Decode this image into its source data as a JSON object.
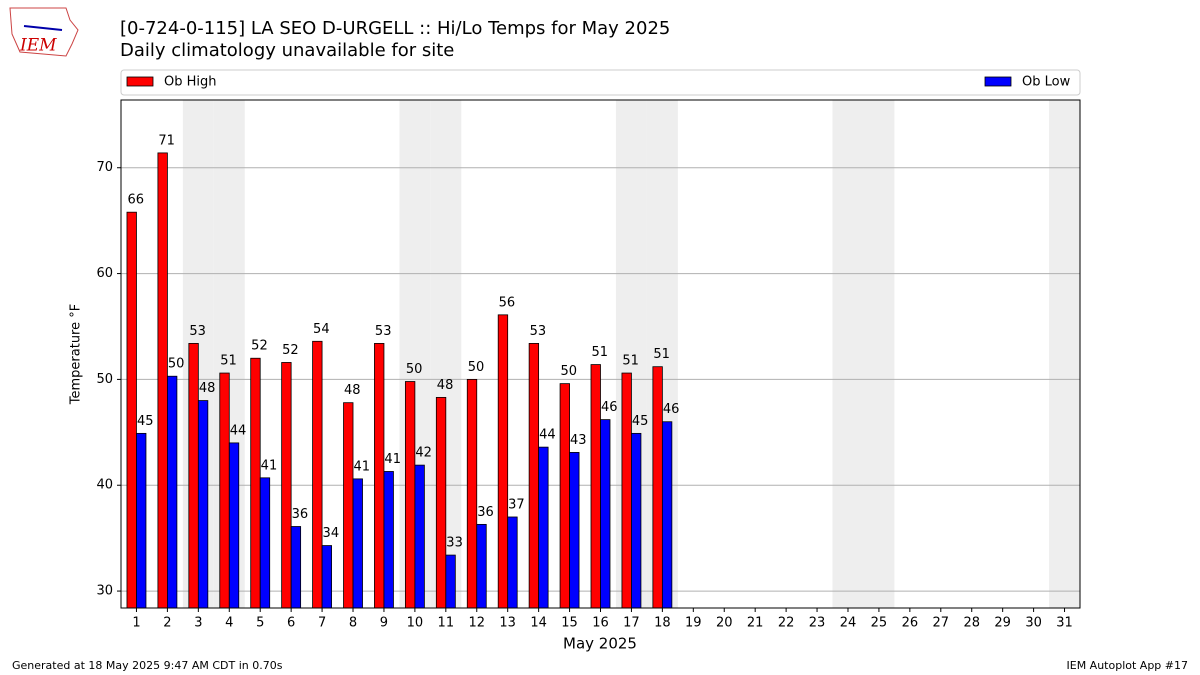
{
  "chart_data": {
    "type": "bar",
    "title": "[0-724-0-115] LA SEO D-URGELL :: Hi/Lo Temps for May 2025",
    "subtitle": "Daily climatology unavailable for site",
    "logo": "IEM",
    "x_label": "May 2025",
    "y_label": "Temperature °F",
    "footer_left": "Generated at 18 May 2025 9:47 AM CDT in 0.70s",
    "footer_right": "IEM Autoplot App #17",
    "categories": [
      "1",
      "2",
      "3",
      "4",
      "5",
      "6",
      "7",
      "8",
      "9",
      "10",
      "11",
      "12",
      "13",
      "14",
      "15",
      "16",
      "17",
      "18",
      "19",
      "20",
      "21",
      "22",
      "23",
      "24",
      "25",
      "26",
      "27",
      "28",
      "29",
      "30",
      "31"
    ],
    "shaded_days": [
      3,
      4,
      10,
      11,
      17,
      18,
      24,
      25,
      31
    ],
    "series": [
      {
        "name": "Ob High",
        "color": "#ff0000",
        "values": [
          65.8,
          71.4,
          53.4,
          50.6,
          52.0,
          51.6,
          53.6,
          47.8,
          53.4,
          49.8,
          48.3,
          50.0,
          56.1,
          53.4,
          49.6,
          51.4,
          50.6,
          51.2,
          null,
          null,
          null,
          null,
          null,
          null,
          null,
          null,
          null,
          null,
          null,
          null,
          null
        ],
        "value_labels": [
          66,
          71,
          53,
          51,
          52,
          52,
          54,
          48,
          53,
          50,
          48,
          50,
          56,
          53,
          50,
          51,
          51,
          51,
          null,
          null,
          null,
          null,
          null,
          null,
          null,
          null,
          null,
          null,
          null,
          null,
          null
        ]
      },
      {
        "name": "Ob Low",
        "color": "#0000ff",
        "values": [
          44.9,
          50.3,
          48.0,
          44.0,
          40.7,
          36.1,
          34.3,
          40.6,
          41.3,
          41.9,
          33.4,
          36.3,
          37.0,
          43.6,
          43.1,
          46.2,
          44.9,
          46.0,
          null,
          null,
          null,
          null,
          null,
          null,
          null,
          null,
          null,
          null,
          null,
          null,
          null
        ],
        "value_labels": [
          45,
          50,
          48,
          44,
          41,
          36,
          34,
          41,
          41,
          42,
          33,
          36,
          37,
          44,
          43,
          46,
          45,
          46,
          null,
          null,
          null,
          null,
          null,
          null,
          null,
          null,
          null,
          null,
          null,
          null,
          null
        ]
      }
    ],
    "ylim": [
      28.4,
      76.4
    ],
    "yticks": [
      30,
      40,
      50,
      60,
      70
    ],
    "grid": true
  }
}
